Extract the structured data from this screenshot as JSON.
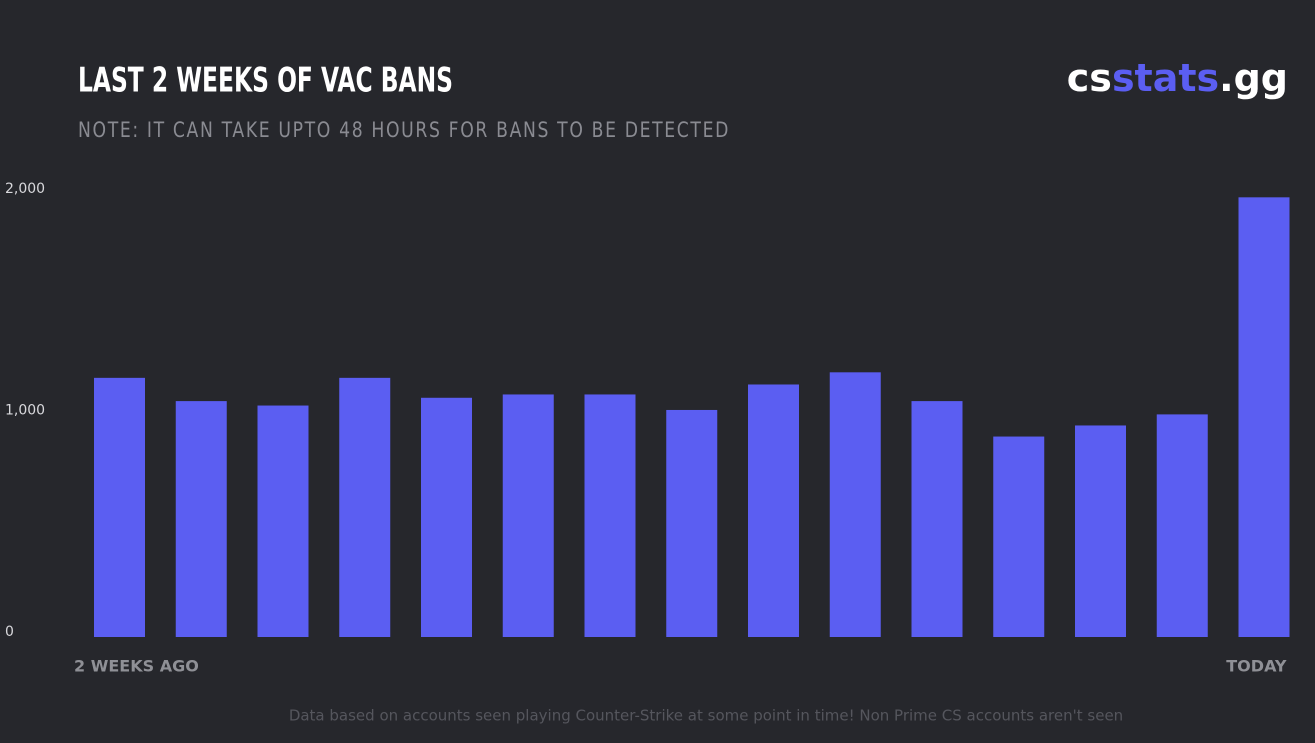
{
  "chart_data": {
    "type": "bar",
    "title": "LAST 2 WEEKS OF VAC BANS",
    "subtitle": "NOTE: IT CAN TAKE UPTO 48 HOURS FOR BANS TO BE DETECTED",
    "brand": [
      "cs",
      "stats",
      ".gg"
    ],
    "footnote": "Data based on accounts seen playing Counter-Strike at some point in time! Non Prime CS accounts aren't seen",
    "categories": [
      "2 WEEKS AGO",
      null,
      null,
      null,
      null,
      null,
      null,
      null,
      null,
      null,
      null,
      null,
      null,
      null,
      "TODAY"
    ],
    "values": [
      1170,
      1065,
      1045,
      1170,
      1080,
      1095,
      1095,
      1025,
      1140,
      1195,
      1065,
      905,
      955,
      1005,
      1985
    ],
    "color": "#5b5ef2",
    "ylim": [
      0,
      2000
    ],
    "yticks": [
      0,
      {
        "value": 1000,
        "label": "1,000"
      },
      {
        "value": 2000,
        "label": "2,000"
      }
    ],
    "grid": false
  }
}
